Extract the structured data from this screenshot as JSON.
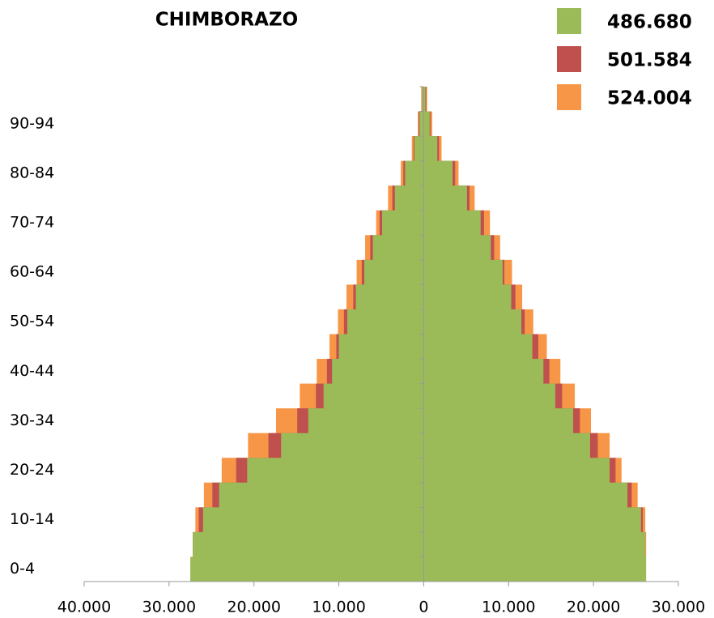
{
  "chart_data": {
    "type": "pyramid",
    "title": "CHIMBORAZO",
    "categories": [
      "0-4",
      null,
      "10-14",
      null,
      "20-24",
      null,
      "30-34",
      null,
      "40-44",
      null,
      "50-54",
      null,
      "60-64",
      null,
      "70-74",
      null,
      "80-84",
      null,
      "90-94",
      null
    ],
    "series": [
      {
        "name": "486.680",
        "color": "#9bbb59",
        "values_left": [
          -27500,
          -27200,
          -26000,
          -24100,
          -20800,
          -16800,
          -13600,
          -11800,
          -10800,
          -10000,
          -9000,
          -8000,
          -7000,
          -6000,
          -4900,
          -3400,
          -2200,
          -1100,
          -500,
          -200
        ],
        "values_right": [
          26200,
          26100,
          25600,
          24000,
          21900,
          19600,
          17600,
          15500,
          14100,
          12800,
          11500,
          10300,
          9300,
          7900,
          6700,
          5100,
          3400,
          1600,
          700,
          200
        ]
      },
      {
        "name": "501.584",
        "color": "#c0504d",
        "values_left": [
          -27000,
          -27200,
          -26500,
          -24900,
          -22100,
          -18300,
          -14900,
          -12700,
          -11400,
          -10300,
          -9400,
          -8300,
          -7300,
          -6300,
          -5200,
          -3700,
          -2400,
          -1200,
          -600,
          -200
        ],
        "values_right": [
          24200,
          26100,
          25800,
          24500,
          22600,
          20500,
          18400,
          16300,
          14800,
          13500,
          11900,
          10800,
          9500,
          8300,
          7100,
          5400,
          3700,
          1800,
          800,
          300
        ]
      },
      {
        "name": "524.004",
        "color": "#f79646",
        "values_left": [
          -25300,
          -27200,
          -26900,
          -25900,
          -23800,
          -20700,
          -17400,
          -14600,
          -12600,
          -11100,
          -10100,
          -9100,
          -7900,
          -6900,
          -5600,
          -4200,
          -2700,
          -1400,
          -700,
          -300
        ],
        "values_right": [
          24000,
          26200,
          26100,
          25200,
          23300,
          21900,
          19700,
          17800,
          16100,
          14500,
          12900,
          11600,
          10400,
          9000,
          7800,
          6000,
          4100,
          2100,
          1000,
          400
        ]
      }
    ],
    "xlim": [
      -40000,
      30000
    ],
    "xticks": [
      {
        "value": -40000,
        "label": "40.000"
      },
      {
        "value": -30000,
        "label": "30.000"
      },
      {
        "value": -20000,
        "label": "20.000"
      },
      {
        "value": -10000,
        "label": "10.000"
      },
      0,
      {
        "value": 10000,
        "label": "10.000"
      },
      {
        "value": 20000,
        "label": "20.000"
      },
      {
        "value": 30000,
        "label": "30.000"
      }
    ],
    "legend": "top-right"
  }
}
